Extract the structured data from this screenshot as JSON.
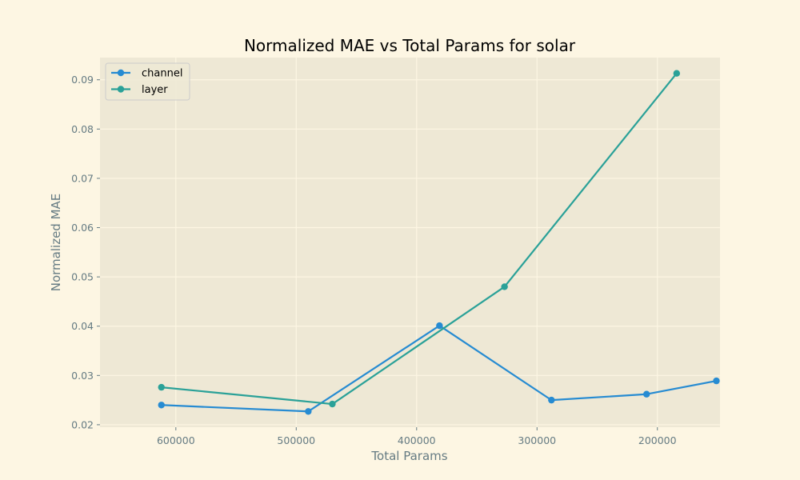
{
  "chart_data": {
    "type": "line",
    "title": "Normalized MAE vs Total Params for solar",
    "xlabel": "Total Params",
    "ylabel": "Normalized MAE",
    "x_axis_inverted": true,
    "xlim": [
      663000,
      148000
    ],
    "ylim": [
      0.0195,
      0.0945
    ],
    "x_ticks": [
      600000,
      500000,
      400000,
      300000,
      200000
    ],
    "x_tick_labels": [
      "600000",
      "500000",
      "400000",
      "300000",
      "200000"
    ],
    "y_ticks": [
      0.02,
      0.03,
      0.04,
      0.05,
      0.06,
      0.07,
      0.08,
      0.09
    ],
    "y_tick_labels": [
      "0.02",
      "0.03",
      "0.04",
      "0.05",
      "0.06",
      "0.07",
      "0.08",
      "0.09"
    ],
    "grid": true,
    "legend_position": "top-left",
    "colors": {
      "page_background": "#fdf6e3",
      "plot_background": "#eee8d5",
      "grid": "#fdf6e3"
    },
    "series": [
      {
        "name": "channel",
        "color": "#268bd2",
        "marker": "circle",
        "x": [
          612000,
          490000,
          381000,
          288000,
          209000,
          151000
        ],
        "y": [
          0.024,
          0.0227,
          0.0401,
          0.025,
          0.0262,
          0.0289
        ]
      },
      {
        "name": "layer",
        "color": "#2aa198",
        "marker": "circle",
        "x": [
          612000,
          470000,
          327000,
          184000
        ],
        "y": [
          0.0276,
          0.0242,
          0.048,
          0.0913
        ]
      }
    ]
  }
}
